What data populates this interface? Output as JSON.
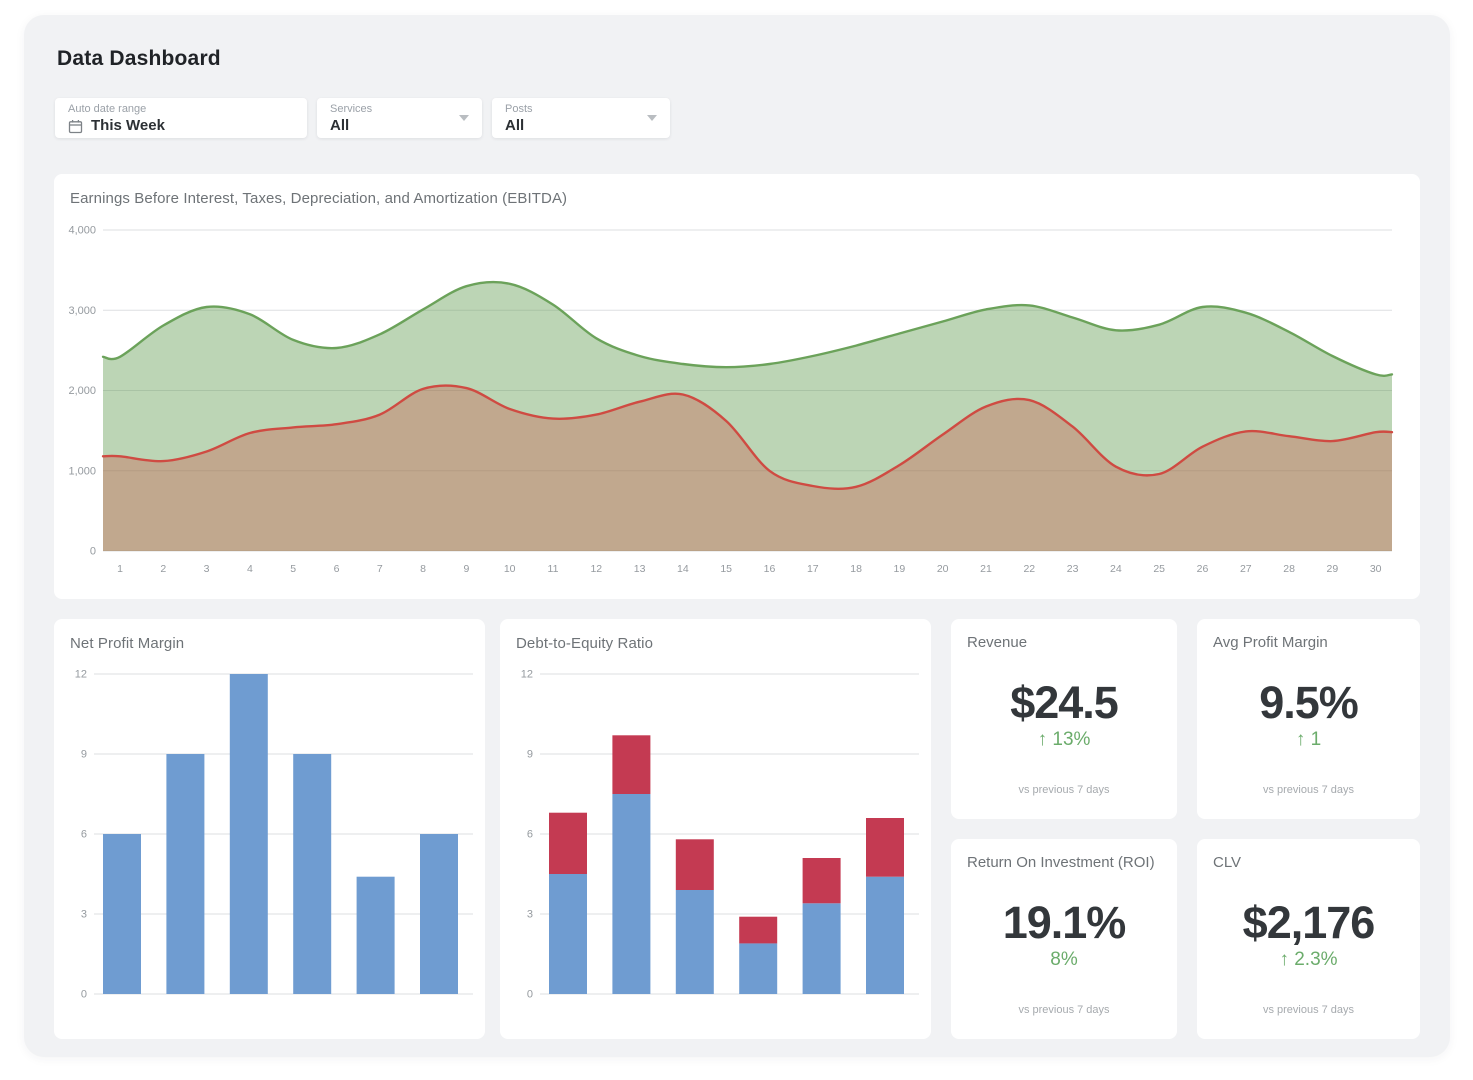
{
  "page": {
    "title": "Data Dashboard"
  },
  "filters": [
    {
      "label": "Auto date range",
      "value": "This Week",
      "icon": "calendar-icon"
    },
    {
      "label": "Services",
      "value": "All",
      "icon": "chevron-down-icon"
    },
    {
      "label": "Posts",
      "value": "All",
      "icon": "chevron-down-icon"
    }
  ],
  "chart_data": [
    {
      "type": "area",
      "title": "Earnings Before Interest, Taxes, Depreciation, and Amortization (EBITDA)",
      "x": [
        1,
        2,
        3,
        4,
        5,
        6,
        7,
        8,
        9,
        10,
        11,
        12,
        13,
        14,
        15,
        16,
        17,
        18,
        19,
        20,
        21,
        22,
        23,
        24,
        25,
        26,
        27,
        28,
        29,
        30
      ],
      "series": [
        {
          "name": "ebitda-upper",
          "color": "#6ba25a",
          "fill": "rgba(107,162,90,0.45)",
          "values": [
            2420,
            2810,
            3040,
            2950,
            2630,
            2530,
            2700,
            3010,
            3300,
            3330,
            3070,
            2650,
            2430,
            2330,
            2290,
            2330,
            2430,
            2560,
            2710,
            2860,
            3010,
            3060,
            2910,
            2750,
            2820,
            3040,
            2970,
            2730,
            2430,
            2200
          ]
        },
        {
          "name": "ebitda-lower",
          "color": "#cf4b42",
          "fill": "rgba(204,75,60,0.32)",
          "values": [
            1180,
            1120,
            1240,
            1470,
            1540,
            1580,
            1700,
            2020,
            2030,
            1770,
            1650,
            1700,
            1860,
            1950,
            1620,
            1000,
            810,
            800,
            1070,
            1450,
            1800,
            1880,
            1550,
            1050,
            960,
            1300,
            1490,
            1430,
            1370,
            1480
          ]
        }
      ],
      "ylim": [
        0,
        4000
      ],
      "yticks": [
        0,
        1000,
        2000,
        3000,
        4000
      ],
      "ytick_labels": [
        "0",
        "1,000",
        "2,000",
        "3,000",
        "4,000"
      ],
      "grid": true,
      "legend": "none"
    },
    {
      "type": "bar",
      "title": "Net Profit Margin",
      "color": "#6f9cd1",
      "values": [
        6,
        9,
        12,
        9,
        4.4,
        6
      ],
      "ylim": [
        0,
        12
      ],
      "yticks": [
        0,
        3,
        6,
        9,
        12
      ],
      "ytick_labels": [
        "0",
        "3",
        "6",
        "9",
        "12"
      ],
      "grid": true,
      "legend": "none"
    },
    {
      "type": "bar",
      "title": "Debt-to-Equity Ratio",
      "stacked": true,
      "series": [
        {
          "name": "equity-bottom",
          "color": "#6f9cd1",
          "values": [
            4.5,
            7.5,
            3.9,
            1.9,
            3.4,
            4.4
          ]
        },
        {
          "name": "debt-top",
          "color": "#c43a52",
          "values": [
            2.3,
            2.2,
            1.9,
            1.0,
            1.7,
            2.2
          ]
        }
      ],
      "ylim": [
        0,
        12
      ],
      "yticks": [
        0,
        3,
        6,
        9,
        12
      ],
      "ytick_labels": [
        "0",
        "3",
        "6",
        "9",
        "12"
      ],
      "grid": true,
      "legend": "none"
    }
  ],
  "kpis": [
    {
      "title": "Revenue",
      "value": "$24.5",
      "delta": "↑ 13%",
      "note": "vs previous 7 days"
    },
    {
      "title": "Avg Profit Margin",
      "value": "9.5%",
      "delta": "↑ 1",
      "note": "vs previous 7 days"
    },
    {
      "title": "Return On Investment (ROI)",
      "value": "19.1%",
      "delta": "8%",
      "note": "vs previous 7 days"
    },
    {
      "title": "CLV",
      "value": "$2,176",
      "delta": "↑ 2.3%",
      "note": "vs previous 7 days"
    }
  ],
  "colors": {
    "panel_bg": "#f1f2f4",
    "card_bg": "#ffffff",
    "area_green_stroke": "#6ba25a",
    "area_red_stroke": "#cf4b42",
    "area_overlap_tan": "#c1ab91",
    "bar_blue": "#6f9cd1",
    "bar_red": "#c43a52",
    "kpi_green": "#6bac6b",
    "grid_line": "#dddfe2",
    "tick_text": "#959a9f"
  }
}
